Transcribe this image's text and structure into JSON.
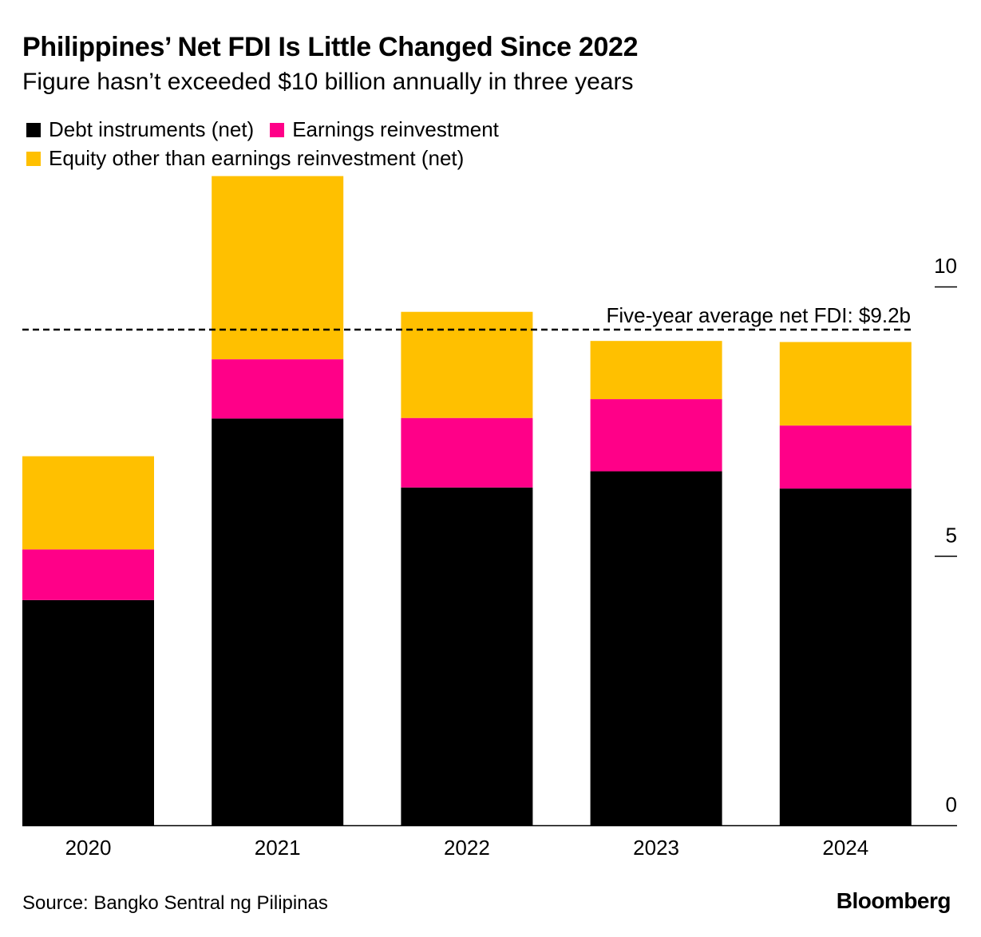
{
  "title": "Philippines’ Net FDI Is Little Changed Since 2022",
  "subtitle": "Figure hasn’t exceeded $10 billion annually in three years",
  "source": "Source: Bangko Sentral ng Pilipinas",
  "brand": "Bloomberg",
  "chart_data": {
    "type": "bar",
    "stacked": true,
    "categories": [
      "2020",
      "2021",
      "2022",
      "2023",
      "2024"
    ],
    "series": [
      {
        "name": "Debt instruments (net)",
        "color": "#000000",
        "values": [
          4.18,
          7.55,
          6.27,
          6.57,
          6.25
        ]
      },
      {
        "name": "Earnings reinvestment",
        "color": "#ff0088",
        "values": [
          0.94,
          1.1,
          1.29,
          1.34,
          1.17
        ]
      },
      {
        "name": "Equity other than earnings reinvestment (net)",
        "color": "#ffc000",
        "values": [
          1.73,
          3.4,
          1.97,
          1.08,
          1.55
        ]
      }
    ],
    "yticks": [
      0,
      5,
      10
    ],
    "ylim": [
      0,
      12.1
    ],
    "reference_line": {
      "value": 9.2,
      "label": "Five-year average net FDI: $9.2b"
    },
    "legend_position": "top-left",
    "grid": false
  }
}
